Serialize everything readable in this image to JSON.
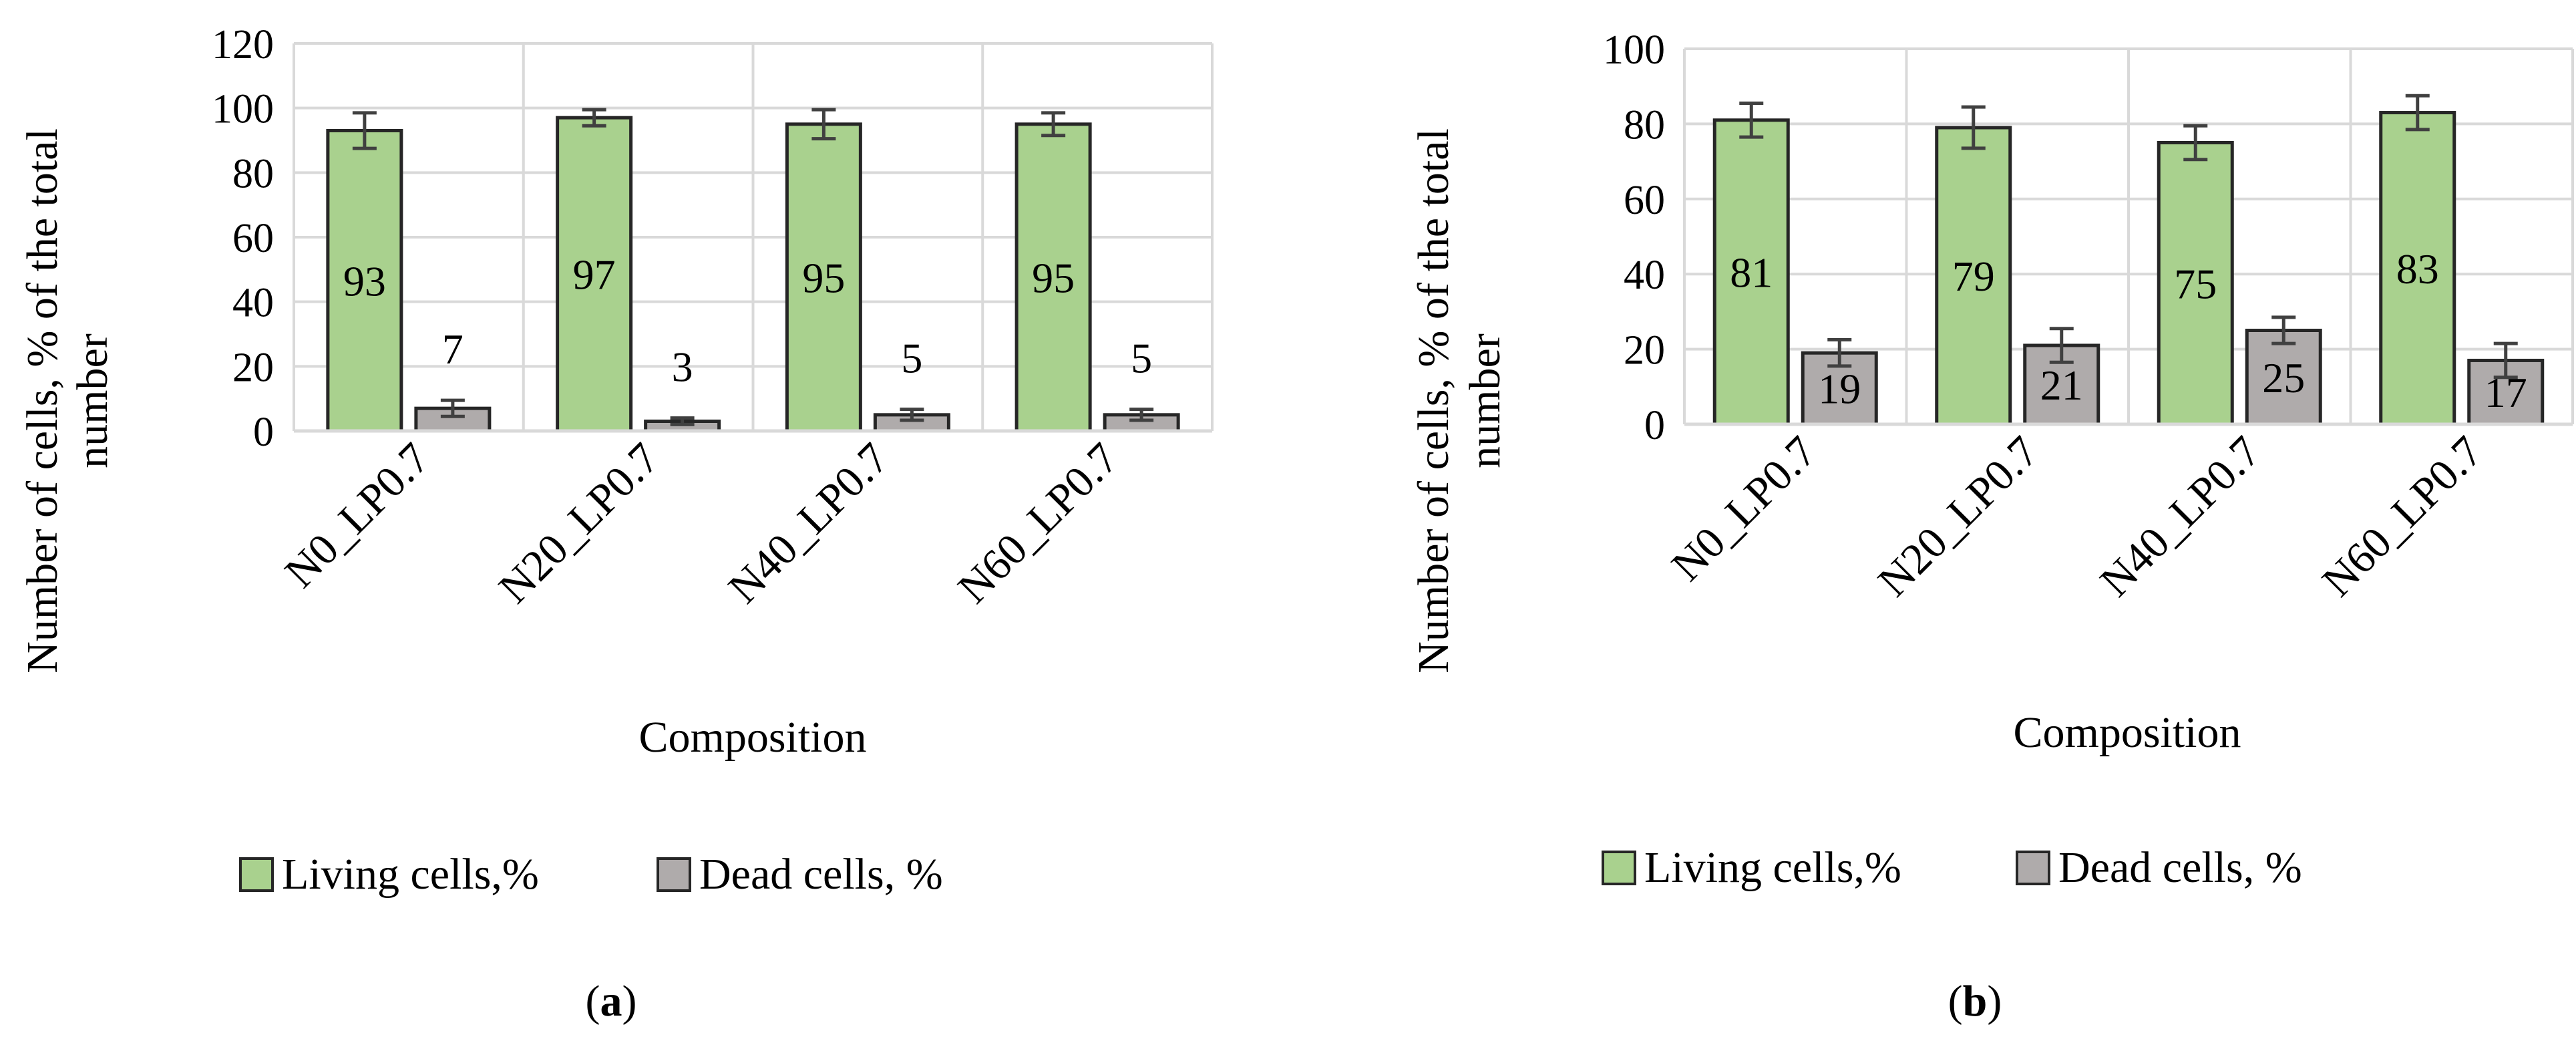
{
  "chart_data": [
    {
      "type": "bar",
      "panel_label": "a",
      "title": "",
      "xlabel": "Composition",
      "ylabel": "Number of cells, % of the total number",
      "ylabel_lines": [
        "Number of cells, % of the total",
        "number"
      ],
      "categories": [
        "N0_LP0.7",
        "N20_LP0.7",
        "N40_LP0.7",
        "N60_LP0.7"
      ],
      "ylim": [
        0,
        120
      ],
      "yticks": [
        0,
        20,
        40,
        60,
        80,
        100,
        120
      ],
      "grid": true,
      "legend": "bottom",
      "series": [
        {
          "name": "Living cells,%",
          "color": "#a9d18e",
          "values": [
            93,
            97,
            95,
            95
          ],
          "errors": [
            5.5,
            2.5,
            4.5,
            3.5
          ],
          "labels": [
            "93",
            "97",
            "95",
            "95"
          ],
          "label_position": "center"
        },
        {
          "name": "Dead cells, %",
          "color": "#afabab",
          "values": [
            7,
            3,
            5,
            5
          ],
          "errors": [
            2.5,
            1,
            1.7,
            1.7
          ],
          "labels": [
            "7",
            "3",
            "5",
            "5"
          ],
          "label_position": "above"
        }
      ]
    },
    {
      "type": "bar",
      "panel_label": "b",
      "title": "",
      "xlabel": "Composition",
      "ylabel": "Number of cells, % of the total number",
      "ylabel_lines": [
        "Number of cells, % of the total",
        "number"
      ],
      "categories": [
        "N0_LP0.7",
        "N20_LP0.7",
        "N40_LP0.7",
        "N60_LP0.7"
      ],
      "ylim": [
        0,
        100
      ],
      "yticks": [
        0,
        20,
        40,
        60,
        80,
        100
      ],
      "grid": true,
      "legend": "bottom",
      "series": [
        {
          "name": "Living cells,%",
          "color": "#a9d18e",
          "values": [
            81,
            79,
            75,
            83
          ],
          "errors": [
            4.5,
            5.5,
            4.5,
            4.5
          ],
          "labels": [
            "81",
            "79",
            "75",
            "83"
          ],
          "label_position": "center"
        },
        {
          "name": "Dead cells, %",
          "color": "#afabab",
          "values": [
            19,
            21,
            25,
            17
          ],
          "errors": [
            3.5,
            4.5,
            3.5,
            4.5
          ],
          "labels": [
            "19",
            "21",
            "25",
            "17"
          ],
          "label_position": "center"
        }
      ]
    }
  ]
}
